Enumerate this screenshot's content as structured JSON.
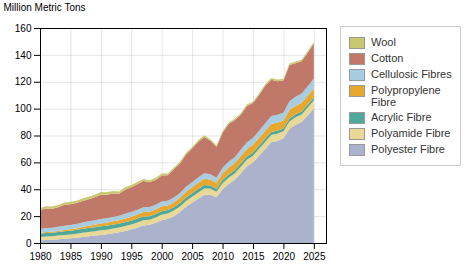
{
  "chart_data": {
    "type": "area",
    "stacked": true,
    "ylabel": "Million Metric Tons",
    "x": [
      1980,
      1981,
      1982,
      1983,
      1984,
      1985,
      1986,
      1987,
      1988,
      1989,
      1990,
      1991,
      1992,
      1993,
      1994,
      1995,
      1996,
      1997,
      1998,
      1999,
      2000,
      2001,
      2002,
      2003,
      2004,
      2005,
      2006,
      2007,
      2008,
      2009,
      2010,
      2011,
      2012,
      2013,
      2014,
      2015,
      2016,
      2017,
      2018,
      2019,
      2020,
      2021,
      2022,
      2023,
      2024,
      2025
    ],
    "series": [
      {
        "name": "Polyester Fibre",
        "color": "#aab2cc",
        "values": [
          2.0,
          2.3,
          2.5,
          2.8,
          3.2,
          3.5,
          3.9,
          4.5,
          5.0,
          5.5,
          6.0,
          6.5,
          7.2,
          8.0,
          9.0,
          10.0,
          11.5,
          13.0,
          13.5,
          15.0,
          17.0,
          18.0,
          20.0,
          23.0,
          27.0,
          30.0,
          33.0,
          36.0,
          36.0,
          34.0,
          40.0,
          44.0,
          47.0,
          52.0,
          57.0,
          60.0,
          65.0,
          70.0,
          75.0,
          76.0,
          78.0,
          85.0,
          88.0,
          90.0,
          95.0,
          100.0
        ]
      },
      {
        "name": "Polyamide Fibre",
        "color": "#ead896",
        "values": [
          2.5,
          2.6,
          2.6,
          2.7,
          2.8,
          2.9,
          3.0,
          3.1,
          3.2,
          3.3,
          3.4,
          3.4,
          3.5,
          3.5,
          3.6,
          3.7,
          3.8,
          3.9,
          3.8,
          3.9,
          4.0,
          4.0,
          4.1,
          4.2,
          4.3,
          4.4,
          4.5,
          4.5,
          4.3,
          4.2,
          4.5,
          4.6,
          4.7,
          4.8,
          4.9,
          5.0,
          5.1,
          5.2,
          5.3,
          5.3,
          5.2,
          5.5,
          5.6,
          5.7,
          5.8,
          6.0
        ]
      },
      {
        "name": "Acrylic Fibre",
        "color": "#50a898",
        "values": [
          2.5,
          2.6,
          2.6,
          2.7,
          2.8,
          2.8,
          2.9,
          3.0,
          3.0,
          3.0,
          3.1,
          3.0,
          3.0,
          2.9,
          3.0,
          2.9,
          2.9,
          2.9,
          2.7,
          2.7,
          2.7,
          2.5,
          2.5,
          2.5,
          2.6,
          2.6,
          2.6,
          2.6,
          2.4,
          2.2,
          2.4,
          2.4,
          2.4,
          2.4,
          2.4,
          2.3,
          2.3,
          2.3,
          2.3,
          2.2,
          2.1,
          2.2,
          2.2,
          2.2,
          2.2,
          2.2
        ]
      },
      {
        "name": "Polypropylene\nFibre",
        "color": "#e8a830",
        "values": [
          0.5,
          0.6,
          0.7,
          0.8,
          0.9,
          1.0,
          1.2,
          1.4,
          1.6,
          1.8,
          2.0,
          2.2,
          2.4,
          2.5,
          2.7,
          2.9,
          3.1,
          3.3,
          3.3,
          3.4,
          3.6,
          3.5,
          3.7,
          3.9,
          4.2,
          4.5,
          4.7,
          4.8,
          4.5,
          4.3,
          5.0,
          5.2,
          5.3,
          5.5,
          5.7,
          5.8,
          5.9,
          6.0,
          6.1,
          6.0,
          5.9,
          6.2,
          6.3,
          6.4,
          6.5,
          6.7
        ]
      },
      {
        "name": "Cellulosic Fibres",
        "color": "#a8cce0",
        "values": [
          3.0,
          3.0,
          3.0,
          3.1,
          3.2,
          3.2,
          3.2,
          3.3,
          3.3,
          3.4,
          3.4,
          3.3,
          3.3,
          3.3,
          3.4,
          3.5,
          3.5,
          3.5,
          3.4,
          3.4,
          3.5,
          3.4,
          3.5,
          3.6,
          3.7,
          3.8,
          3.9,
          4.0,
          3.9,
          3.8,
          4.1,
          4.3,
          4.5,
          4.7,
          4.9,
          5.1,
          5.3,
          5.6,
          5.8,
          5.9,
          5.8,
          6.5,
          6.7,
          6.9,
          7.1,
          7.5
        ]
      },
      {
        "name": "Cotton",
        "color": "#c07868",
        "values": [
          14.0,
          14.5,
          14.0,
          14.5,
          15.5,
          15.5,
          15.5,
          16.0,
          16.5,
          17.0,
          18.0,
          17.5,
          17.5,
          16.5,
          18.0,
          18.5,
          19.0,
          19.5,
          18.5,
          18.5,
          19.5,
          19.0,
          21.0,
          22.0,
          24.0,
          25.0,
          26.5,
          27.0,
          25.0,
          23.0,
          26.0,
          28.0,
          27.5,
          26.0,
          27.0,
          26.0,
          26.5,
          28.0,
          27.0,
          25.0,
          24.0,
          27.0,
          25.0,
          24.0,
          25.0,
          26.0
        ]
      },
      {
        "name": "Wool",
        "color": "#c8c870",
        "values": [
          1.6,
          1.7,
          1.7,
          1.7,
          1.8,
          1.8,
          1.8,
          1.9,
          1.9,
          2.0,
          2.0,
          1.9,
          1.8,
          1.7,
          1.7,
          1.6,
          1.6,
          1.6,
          1.5,
          1.5,
          1.5,
          1.4,
          1.4,
          1.3,
          1.3,
          1.2,
          1.2,
          1.2,
          1.1,
          1.1,
          1.1,
          1.1,
          1.1,
          1.1,
          1.1,
          1.1,
          1.1,
          1.1,
          1.2,
          1.2,
          1.1,
          1.2,
          1.2,
          1.2,
          1.2,
          1.2
        ]
      }
    ],
    "xlim": [
      1980,
      2027
    ],
    "xticks": [
      1980,
      1985,
      1990,
      1995,
      2000,
      2005,
      2010,
      2015,
      2020,
      2025
    ],
    "ylim": [
      0,
      160
    ],
    "yticks": [
      0,
      20,
      40,
      60,
      80,
      100,
      120,
      140,
      160
    ],
    "grid": true,
    "legend": "right"
  }
}
